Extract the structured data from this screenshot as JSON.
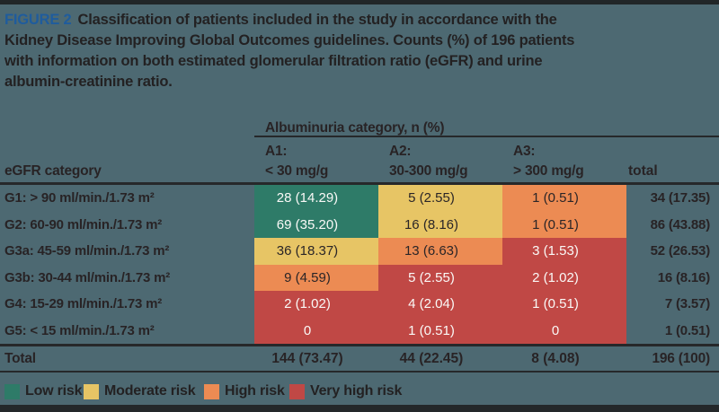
{
  "figure": {
    "label": "FIGURE 2",
    "caption_lines": [
      "Classification of patients included in the study in accordance with the",
      "Kidney Disease Improving Global Outcomes guidelines. Counts (%) of 196 patients",
      "with information on both estimated glomerular filtration ratio (eGFR) and urine",
      "albumin-creatinine ratio."
    ]
  },
  "table": {
    "group_header": "Albuminuria category, n (%)",
    "egfr_header": "eGFR category",
    "total_header": "total",
    "columns": [
      {
        "code": "A1:",
        "range": "< 30 mg/g"
      },
      {
        "code": "A2:",
        "range": "30-300 mg/g"
      },
      {
        "code": "A3:",
        "range": "> 300 mg/g"
      }
    ],
    "rows": [
      {
        "label": "G1: > 90 ml/min./1.73 m²",
        "a1": "28 (14.29)",
        "a2": "5 (2.55)",
        "a3": "1 (0.51)",
        "total": "34 (17.35)",
        "risks": [
          "low",
          "moderate",
          "high"
        ]
      },
      {
        "label": "G2: 60-90 ml/min./1.73 m²",
        "a1": "69 (35.20)",
        "a2": "16 (8.16)",
        "a3": "1 (0.51)",
        "total": "86 (43.88)",
        "risks": [
          "low",
          "moderate",
          "high"
        ]
      },
      {
        "label": "G3a: 45-59 ml/min./1.73 m²",
        "a1": "36 (18.37)",
        "a2": "13 (6.63)",
        "a3": "3 (1.53)",
        "total": "52 (26.53)",
        "risks": [
          "moderate",
          "high",
          "veryhigh"
        ]
      },
      {
        "label": "G3b: 30-44 ml/min./1.73 m²",
        "a1": "9 (4.59)",
        "a2": "5 (2.55)",
        "a3": "2 (1.02)",
        "total": "16 (8.16)",
        "risks": [
          "high",
          "veryhigh",
          "veryhigh"
        ]
      },
      {
        "label": "G4: 15-29 ml/min./1.73 m²",
        "a1": "2 (1.02)",
        "a2": "4 (2.04)",
        "a3": "1 (0.51)",
        "total": "7 (3.57)",
        "risks": [
          "veryhigh",
          "veryhigh",
          "veryhigh"
        ]
      },
      {
        "label": "G5: < 15 ml/min./1.73 m²",
        "a1": "0",
        "a2": "1 (0.51)",
        "a3": "0",
        "total": "1 (0.51)",
        "risks": [
          "veryhigh",
          "veryhigh",
          "veryhigh"
        ]
      }
    ],
    "total_row": {
      "label": "Total",
      "a1": "144 (73.47)",
      "a2": "44 (22.45)",
      "a3": "8 (4.08)",
      "total": "196 (100)"
    }
  },
  "legend": {
    "items": [
      {
        "label": "Low risk",
        "risk": "low"
      },
      {
        "label": "Moderate risk",
        "risk": "moderate"
      },
      {
        "label": "High risk",
        "risk": "high"
      },
      {
        "label": "Very high risk",
        "risk": "veryhigh"
      }
    ]
  },
  "colors": {
    "background": "#4d6972",
    "low_risk": "#2e7b68",
    "moderate_risk": "#e7c565",
    "high_risk": "#ec8b53",
    "very_high_risk": "#c04845",
    "figure_label_blue": "#1f5c9d",
    "text_dark": "#232122",
    "bar_dark": "#212628"
  }
}
